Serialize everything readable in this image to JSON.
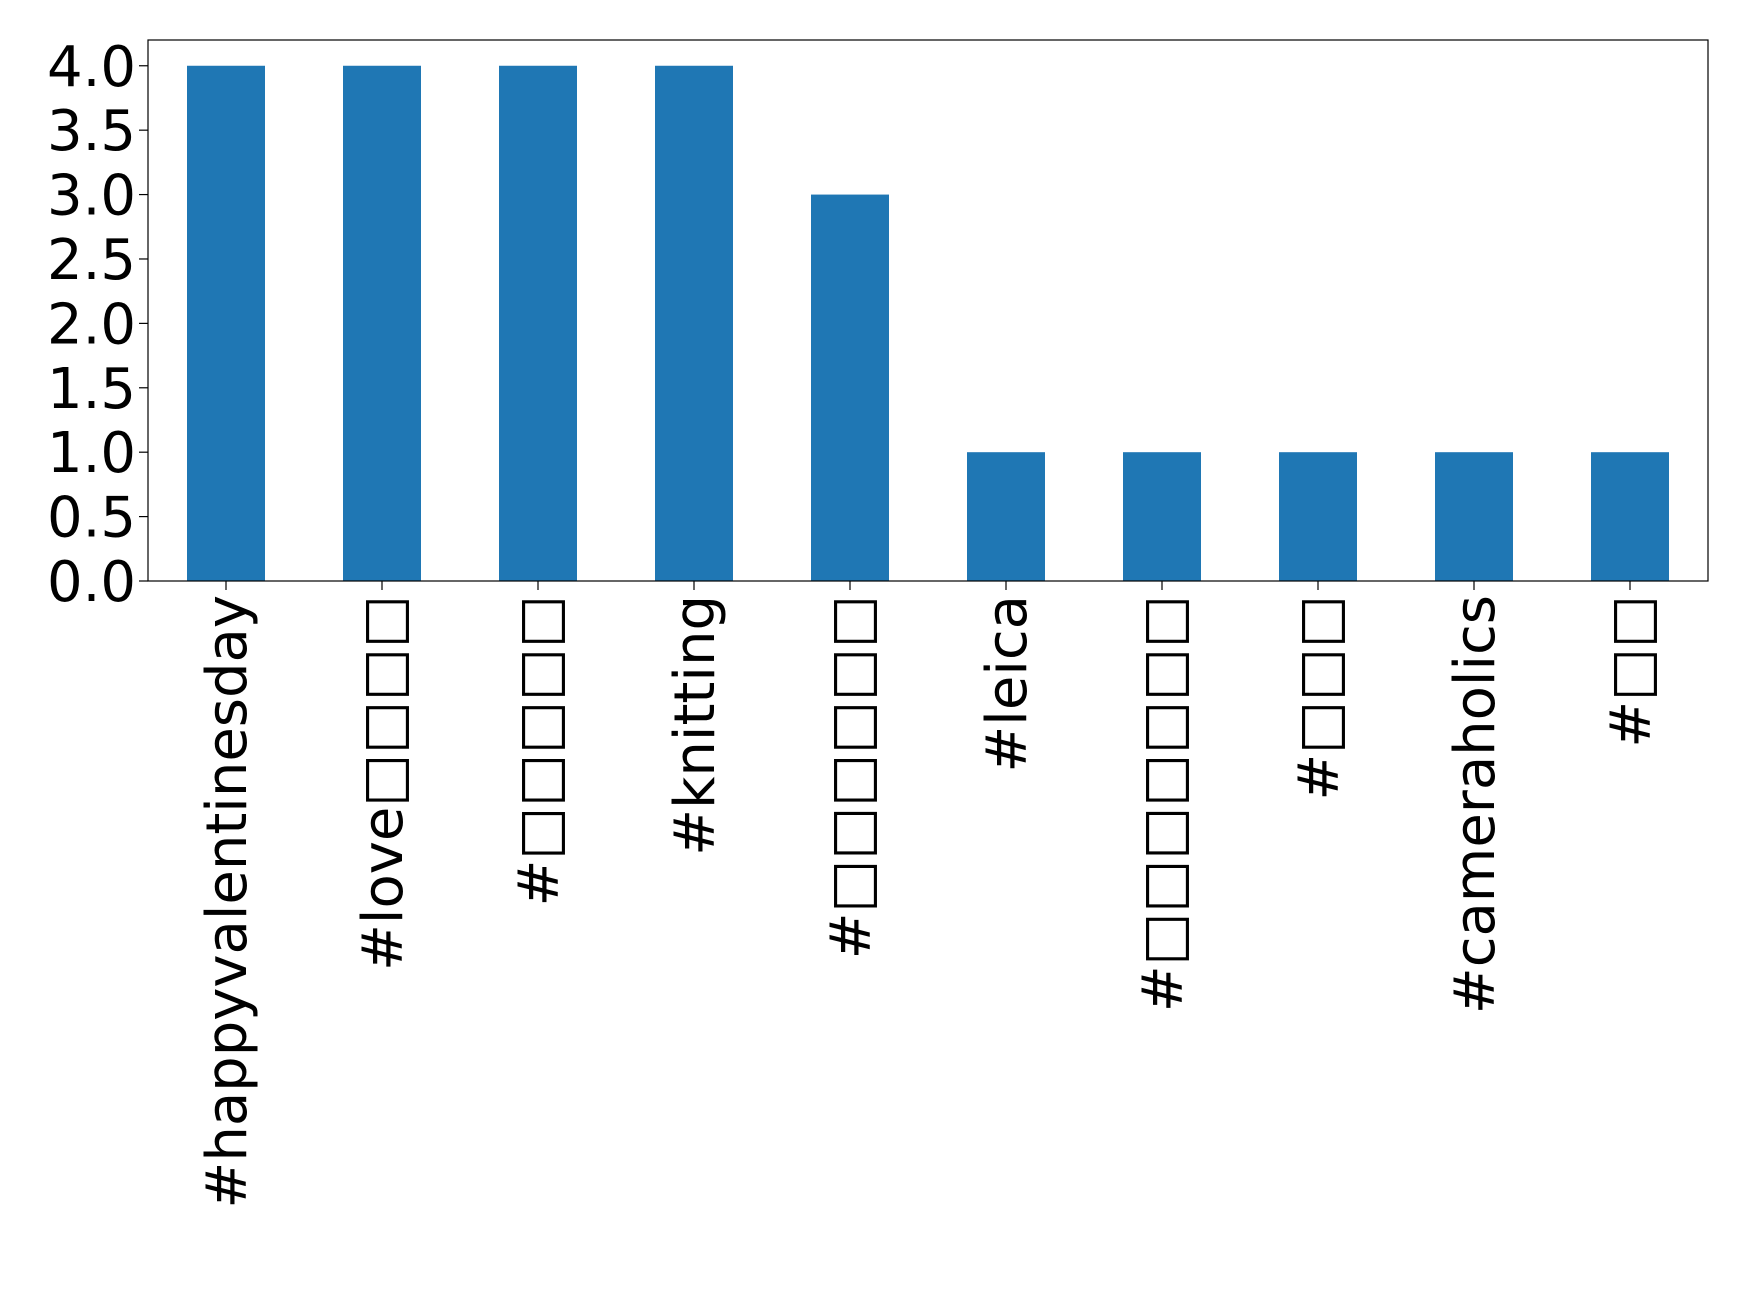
{
  "chart_data": {
    "type": "bar",
    "categories": [
      "#happyvalentinesday",
      "#love□□□□",
      "#□□□□□",
      "#knitting",
      "#□□□□□□",
      "#leica",
      "#□□□□□□□",
      "#□□□",
      "#cameraholics",
      "#□□"
    ],
    "values": [
      4,
      4,
      4,
      4,
      3,
      1,
      1,
      1,
      1,
      1
    ],
    "color": "#1f77b4",
    "ylim": [
      0,
      4.2
    ],
    "yticks": [
      {
        "value": 0,
        "label": "0.0"
      },
      {
        "value": 0.5,
        "label": "0.5"
      },
      {
        "value": 1,
        "label": "1.0"
      },
      {
        "value": 1.5,
        "label": "1.5"
      },
      {
        "value": 2,
        "label": "2.0"
      },
      {
        "value": 2.5,
        "label": "2.5"
      },
      {
        "value": 3,
        "label": "3.0"
      },
      {
        "value": 3.5,
        "label": "3.5"
      },
      {
        "value": 4,
        "label": "4.0"
      }
    ],
    "grid": false
  }
}
